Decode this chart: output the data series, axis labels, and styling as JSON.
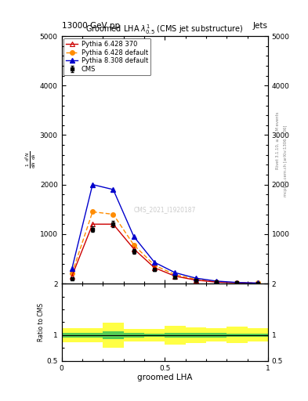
{
  "title": "Groomed LHA $\\lambda^{1}_{0.5}$ (CMS jet substructure)",
  "header_left": "13000 GeV pp",
  "header_right": "Jets",
  "right_label1": "Rivet 3.1.10, ≥ 3.1M events",
  "right_label2": "mcplots.cern.ch [arXiv:1306.3436]",
  "watermark": "CMS_2021_I1920187",
  "xlabel": "groomed LHA",
  "ylabel": "$\\frac{1}{\\mathrm{d}N}\\frac{\\mathrm{d}^2N}{\\mathrm{d}\\lambda}$",
  "ylabel_ratio": "Ratio to CMS",
  "xlim": [
    0,
    1
  ],
  "ylim_main": [
    0,
    5000
  ],
  "ylim_ratio": [
    0.5,
    2
  ],
  "x_data": [
    0.05,
    0.15,
    0.25,
    0.35,
    0.45,
    0.55,
    0.65,
    0.75,
    0.85,
    0.95
  ],
  "cms_data": [
    100,
    1100,
    1200,
    650,
    280,
    130,
    60,
    30,
    15,
    8
  ],
  "cms_errors": [
    20,
    60,
    60,
    40,
    20,
    12,
    8,
    5,
    3,
    2
  ],
  "pythia6_370": [
    150,
    1200,
    1200,
    700,
    320,
    150,
    70,
    30,
    15,
    7
  ],
  "pythia6_default": [
    200,
    1450,
    1400,
    780,
    370,
    180,
    85,
    38,
    18,
    9
  ],
  "pythia8_default": [
    300,
    2000,
    1900,
    950,
    430,
    220,
    110,
    50,
    22,
    10
  ],
  "ratio_x": [
    0.0,
    0.1,
    0.2,
    0.3,
    0.4,
    0.5,
    0.6,
    0.7,
    0.8,
    0.9,
    1.0
  ],
  "ratio_green_lo": [
    0.96,
    0.96,
    0.92,
    0.96,
    0.97,
    0.96,
    0.96,
    0.96,
    0.97,
    0.97,
    0.97
  ],
  "ratio_green_hi": [
    1.04,
    1.04,
    1.08,
    1.04,
    1.03,
    1.04,
    1.04,
    1.04,
    1.03,
    1.03,
    1.03
  ],
  "ratio_yellow_lo": [
    0.86,
    0.86,
    0.76,
    0.88,
    0.88,
    0.82,
    0.85,
    0.87,
    0.84,
    0.87,
    0.88
  ],
  "ratio_yellow_hi": [
    1.14,
    1.14,
    1.24,
    1.12,
    1.12,
    1.18,
    1.15,
    1.13,
    1.16,
    1.13,
    1.12
  ],
  "color_cms": "#000000",
  "color_p6_370": "#cc0000",
  "color_p6_def": "#ff8c00",
  "color_p8_def": "#0000cc",
  "bg_color": "#ffffff"
}
